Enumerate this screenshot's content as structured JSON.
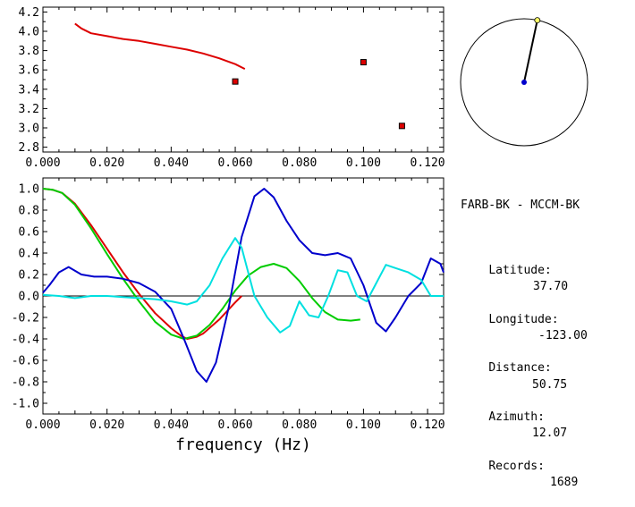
{
  "info": {
    "pair": "FARB-BK - MCCM-BK",
    "latitude_label": "Latitude:",
    "latitude": "37.70",
    "longitude_label": "Longitude:",
    "longitude": "-123.00",
    "distance_label": "Distance:",
    "distance": "50.75",
    "azimuth_label": "Azimuth:",
    "azimuth": "12.07",
    "records_label": "Records:",
    "records": "1689"
  },
  "compass": {
    "azimuth_deg": 12.07,
    "circle_color": "#000000",
    "center_color": "#0000cc",
    "tip_color": "#ffff66"
  },
  "chart_data": [
    {
      "type": "line",
      "panel": "dispersion",
      "xlim": [
        0.0,
        0.125
      ],
      "ylim": [
        2.75,
        4.25
      ],
      "xticks": [
        "0.000",
        "0.020",
        "0.040",
        "0.060",
        "0.080",
        "0.100",
        "0.120"
      ],
      "yticks": [
        "2.8",
        "3.0",
        "3.2",
        "3.4",
        "3.6",
        "3.8",
        "4.0",
        "4.2"
      ],
      "series": [
        {
          "kind": "line",
          "color": "#dd0000",
          "x": [
            0.01,
            0.012,
            0.015,
            0.02,
            0.025,
            0.03,
            0.035,
            0.04,
            0.045,
            0.05,
            0.055,
            0.06,
            0.063
          ],
          "y": [
            4.08,
            4.03,
            3.98,
            3.95,
            3.92,
            3.9,
            3.87,
            3.84,
            3.81,
            3.77,
            3.72,
            3.66,
            3.61
          ]
        },
        {
          "kind": "points",
          "color": "#dd0000",
          "x": [
            0.06,
            0.1,
            0.112
          ],
          "y": [
            3.48,
            3.68,
            3.02
          ]
        }
      ]
    },
    {
      "type": "line",
      "panel": "correlation",
      "xlim": [
        0.0,
        0.125
      ],
      "ylim": [
        -1.1,
        1.1
      ],
      "xticks": [
        "0.000",
        "0.020",
        "0.040",
        "0.060",
        "0.080",
        "0.100",
        "0.120"
      ],
      "yticks": [
        "1.0",
        "0.8",
        "0.6",
        "0.4",
        "0.2",
        "0.0",
        "-0.2",
        "-0.4",
        "-0.6",
        "-0.8",
        "-1.0"
      ],
      "xlabel": "frequency (Hz)",
      "zero_line": true,
      "series": [
        {
          "color": "#dd0000",
          "x": [
            0.0,
            0.003,
            0.006,
            0.01,
            0.015,
            0.02,
            0.025,
            0.03,
            0.035,
            0.04,
            0.043,
            0.045,
            0.048,
            0.05,
            0.055,
            0.06,
            0.062
          ],
          "y": [
            1.0,
            0.99,
            0.96,
            0.86,
            0.66,
            0.44,
            0.22,
            0.02,
            -0.16,
            -0.3,
            -0.37,
            -0.4,
            -0.38,
            -0.35,
            -0.22,
            -0.06,
            0.0
          ]
        },
        {
          "color": "#00cc00",
          "x": [
            0.0,
            0.003,
            0.006,
            0.01,
            0.015,
            0.02,
            0.025,
            0.03,
            0.035,
            0.04,
            0.044,
            0.048,
            0.052,
            0.056,
            0.06,
            0.064,
            0.068,
            0.072,
            0.076,
            0.08,
            0.084,
            0.088,
            0.092,
            0.096,
            0.099
          ],
          "y": [
            1.0,
            0.99,
            0.96,
            0.85,
            0.63,
            0.39,
            0.16,
            -0.05,
            -0.24,
            -0.36,
            -0.4,
            -0.37,
            -0.27,
            -0.12,
            0.05,
            0.19,
            0.27,
            0.3,
            0.26,
            0.14,
            -0.02,
            -0.15,
            -0.22,
            -0.23,
            -0.22
          ]
        },
        {
          "color": "#0000cc",
          "x": [
            0.0,
            0.002,
            0.005,
            0.008,
            0.012,
            0.016,
            0.02,
            0.025,
            0.03,
            0.035,
            0.04,
            0.044,
            0.048,
            0.051,
            0.054,
            0.058,
            0.062,
            0.066,
            0.069,
            0.072,
            0.076,
            0.08,
            0.084,
            0.088,
            0.092,
            0.096,
            0.1,
            0.104,
            0.107,
            0.11,
            0.114,
            0.118,
            0.121,
            0.124,
            0.125
          ],
          "y": [
            0.03,
            0.1,
            0.22,
            0.27,
            0.2,
            0.18,
            0.18,
            0.16,
            0.12,
            0.04,
            -0.12,
            -0.4,
            -0.7,
            -0.8,
            -0.62,
            -0.1,
            0.55,
            0.93,
            1.0,
            0.92,
            0.7,
            0.52,
            0.4,
            0.38,
            0.4,
            0.35,
            0.1,
            -0.25,
            -0.33,
            -0.2,
            0.0,
            0.12,
            0.35,
            0.3,
            0.22
          ]
        },
        {
          "color": "#00e0e0",
          "x": [
            0.0,
            0.005,
            0.01,
            0.015,
            0.02,
            0.025,
            0.03,
            0.035,
            0.04,
            0.045,
            0.048,
            0.052,
            0.056,
            0.06,
            0.062,
            0.066,
            0.07,
            0.074,
            0.077,
            0.08,
            0.083,
            0.086,
            0.089,
            0.092,
            0.095,
            0.098,
            0.101,
            0.104,
            0.107,
            0.11,
            0.114,
            0.118,
            0.121,
            0.125
          ],
          "y": [
            0.01,
            0.0,
            -0.02,
            0.0,
            0.0,
            -0.01,
            -0.02,
            -0.03,
            -0.05,
            -0.08,
            -0.05,
            0.1,
            0.35,
            0.54,
            0.45,
            0.0,
            -0.2,
            -0.34,
            -0.28,
            -0.05,
            -0.18,
            -0.2,
            0.0,
            0.24,
            0.22,
            0.0,
            -0.05,
            0.12,
            0.29,
            0.26,
            0.22,
            0.15,
            0.0,
            0.0
          ]
        }
      ]
    }
  ]
}
